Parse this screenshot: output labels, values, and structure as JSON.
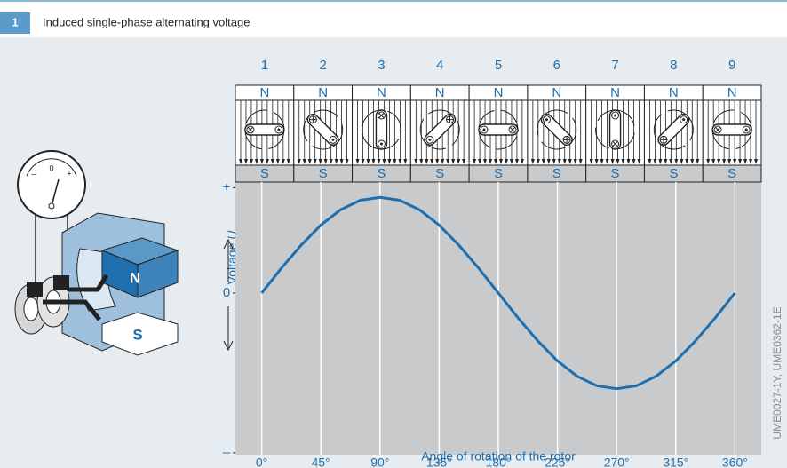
{
  "figure_number": "1",
  "credit": "UME0027-1Y, UME0362-1E",
  "illustration": {
    "north": "N",
    "south": "S",
    "meter_ticks": [
      "–",
      "0",
      "+"
    ]
  },
  "chart_data": {
    "type": "line",
    "title": "Induced single-phase alternating voltage",
    "y_label": "Voltage",
    "y_label_symbol": "U",
    "x_label": "Angle of rotation of the rotor",
    "color": "#1f6fae",
    "x": [
      0,
      15,
      30,
      45,
      60,
      75,
      90,
      105,
      120,
      135,
      150,
      165,
      180,
      195,
      210,
      225,
      240,
      255,
      270,
      285,
      300,
      315,
      330,
      345,
      360
    ],
    "values": [
      0,
      0.26,
      0.5,
      0.71,
      0.87,
      0.97,
      1,
      0.97,
      0.87,
      0.71,
      0.5,
      0.26,
      0,
      -0.26,
      -0.5,
      -0.71,
      -0.87,
      -0.97,
      -1,
      -0.97,
      -0.87,
      -0.71,
      -0.5,
      -0.26,
      0
    ],
    "xlim": [
      -20,
      380
    ],
    "ylim": [
      -1.69,
      1.16
    ],
    "xticks": [
      {
        "value": 0,
        "label": "0°"
      },
      {
        "value": 45,
        "label": "45°"
      },
      {
        "value": 90,
        "label": "90°"
      },
      {
        "value": 135,
        "label": "135°"
      },
      {
        "value": 180,
        "label": "180°"
      },
      {
        "value": 225,
        "label": "225°"
      },
      {
        "value": 270,
        "label": "270°"
      },
      {
        "value": 315,
        "label": "315°"
      },
      {
        "value": 360,
        "label": "360°"
      }
    ],
    "yticks": [
      {
        "value": 1.1,
        "label": "+"
      },
      0,
      {
        "value": -1.67,
        "label": "–"
      }
    ],
    "grid": true,
    "positions": [
      {
        "number": "1",
        "north": "N",
        "south": "S"
      },
      {
        "number": "2",
        "north": "N",
        "south": "S"
      },
      {
        "number": "3",
        "north": "N",
        "south": "S"
      },
      {
        "number": "4",
        "north": "N",
        "south": "S"
      },
      {
        "number": "5",
        "north": "N",
        "south": "S"
      },
      {
        "number": "6",
        "north": "N",
        "south": "S"
      },
      {
        "number": "7",
        "north": "N",
        "south": "S"
      },
      {
        "number": "8",
        "north": "N",
        "south": "S"
      },
      {
        "number": "9",
        "north": "N",
        "south": "S"
      }
    ]
  }
}
